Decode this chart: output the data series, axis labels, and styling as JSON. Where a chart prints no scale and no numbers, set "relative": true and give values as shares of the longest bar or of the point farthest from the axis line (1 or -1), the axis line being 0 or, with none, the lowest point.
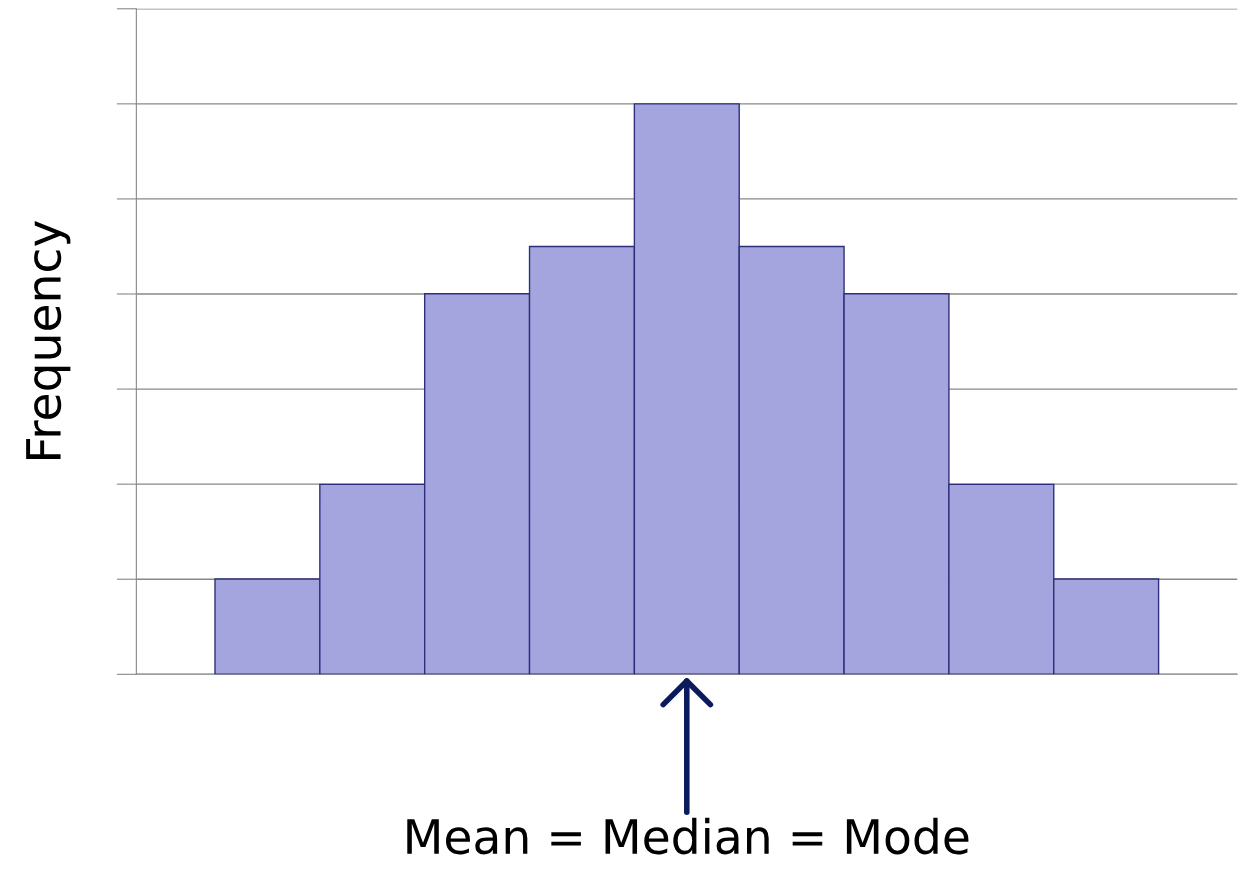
{
  "chart_data": {
    "type": "bar",
    "ylabel": "Frequency",
    "relative": true,
    "categories": [
      null,
      null,
      null,
      null,
      null,
      null,
      null,
      null,
      null
    ],
    "values": [
      0.167,
      0.333,
      0.667,
      0.75,
      1,
      0.75,
      0.667,
      0.333,
      0.167
    ],
    "color": "#a4a5df",
    "grid": "y",
    "annotations": [
      "Mean = Median = Mode"
    ]
  }
}
